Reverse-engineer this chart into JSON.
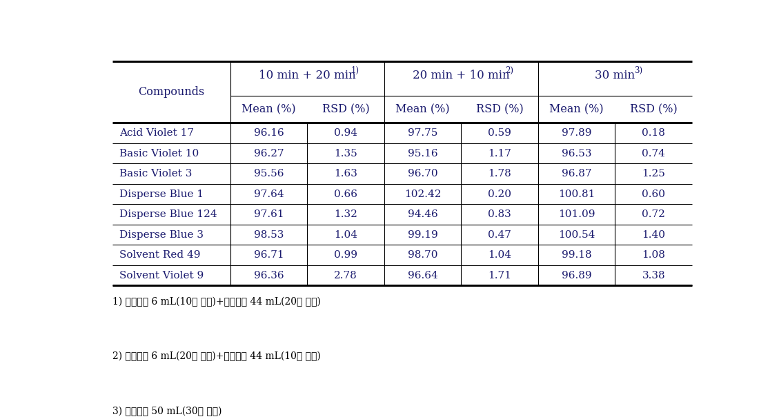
{
  "compounds": [
    "Acid Violet 17",
    "Basic Violet 10",
    "Basic Violet 3",
    "Disperse Blue 1",
    "Disperse Blue 124",
    "Disperse Blue 3",
    "Solvent Red 49",
    "Solvent Violet 9"
  ],
  "col_group1_header": "10 min + 20 min",
  "col_group1_sup": "1)",
  "col_group2_header": "20 min + 10 min",
  "col_group2_sup": "2)",
  "col_group3_header": "30 min",
  "col_group3_sup": "3)",
  "subheader_mean": "Mean (%)",
  "subheader_rsd": "RSD (%)",
  "compound_col_header": "Compounds",
  "data": [
    [
      96.16,
      0.94,
      97.75,
      0.59,
      97.89,
      0.18
    ],
    [
      96.27,
      1.35,
      95.16,
      1.17,
      96.53,
      0.74
    ],
    [
      95.56,
      1.63,
      96.7,
      1.78,
      96.87,
      1.25
    ],
    [
      97.64,
      0.66,
      102.42,
      0.2,
      100.81,
      0.6
    ],
    [
      97.61,
      1.32,
      94.46,
      0.83,
      101.09,
      0.72
    ],
    [
      98.53,
      1.04,
      99.19,
      0.47,
      100.54,
      1.4
    ],
    [
      96.71,
      0.99,
      98.7,
      1.04,
      99.18,
      1.08
    ],
    [
      96.36,
      2.78,
      96.64,
      1.71,
      96.89,
      3.38
    ]
  ],
  "footnotes": [
    "1) 추출용매 6 mL(10분 추출)+추출용매 44 mL(20분 추출)",
    "2) 추출용매 6 mL(20분 추출)+추출용매 44 mL(10분 추출)",
    "3) 추출용매 50 mL(30분 추출)"
  ],
  "bg_color": "#ffffff",
  "text_color": "#1a1a6e",
  "line_color": "#000000",
  "font_size_group_header": 12,
  "font_size_subheader": 11.5,
  "font_size_data": 11,
  "font_size_footnote": 10,
  "font_size_sup": 8.5
}
